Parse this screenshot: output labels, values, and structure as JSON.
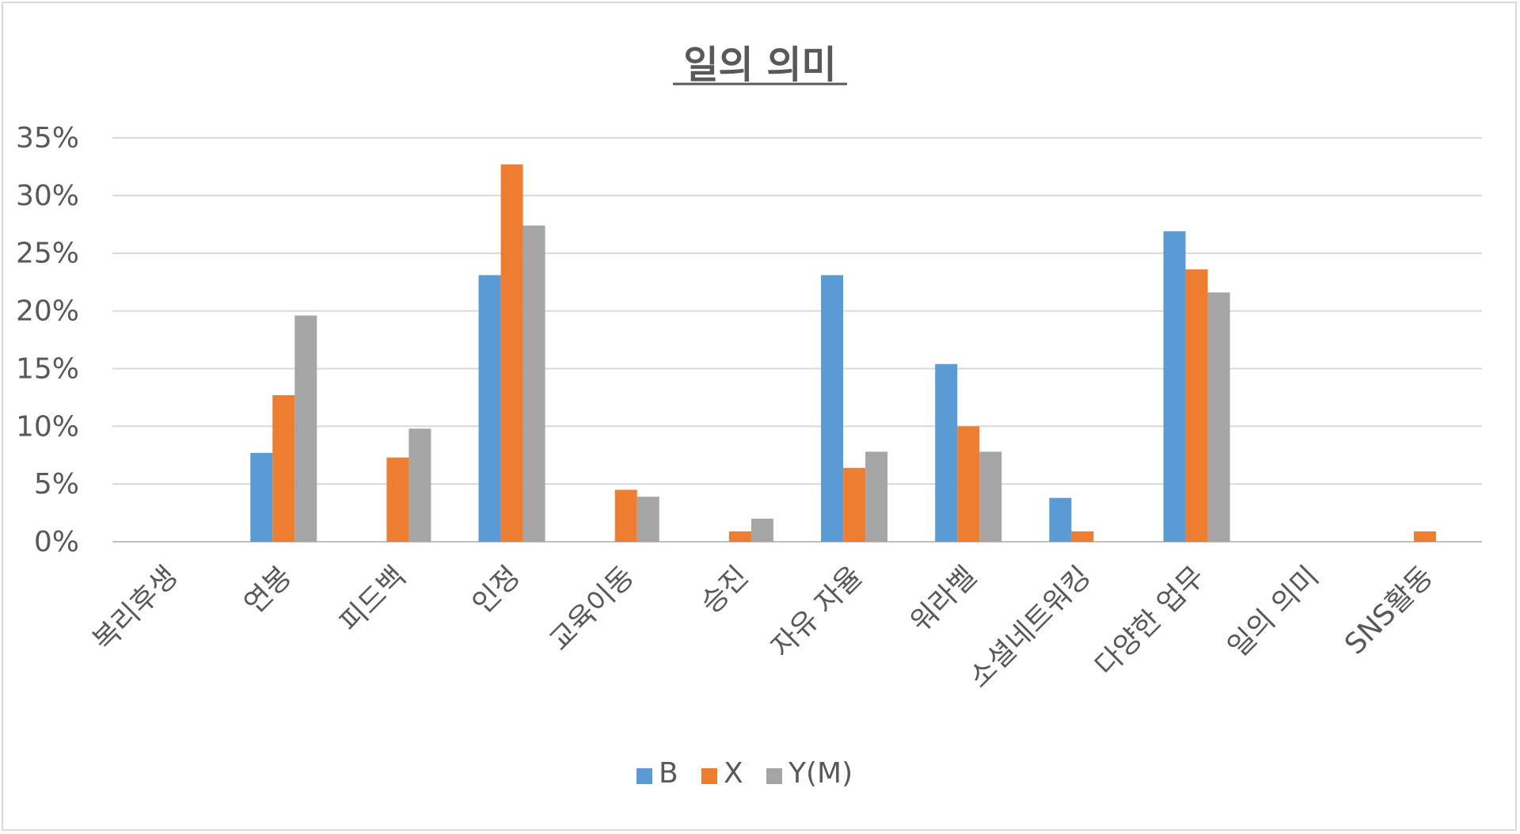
{
  "chart_data": {
    "type": "bar",
    "title": "일의 의미",
    "xlabel": "",
    "ylabel": "",
    "ylim": [
      0,
      0.35
    ],
    "yticks": [
      0,
      0.05,
      0.1,
      0.15,
      0.2,
      0.25,
      0.3,
      0.35
    ],
    "ytick_labels": [
      "0%",
      "5%",
      "10%",
      "15%",
      "20%",
      "25%",
      "30%",
      "35%"
    ],
    "grid": true,
    "legend_position": "bottom",
    "categories": [
      "복리후생",
      "연봉",
      "피드백",
      "인정",
      "교육이동",
      "승진",
      "자유 자율",
      "워라벨",
      "소셜네트워킹",
      "다양한 업무",
      "일의 의미",
      "SNS활동"
    ],
    "series": [
      {
        "name": "B",
        "color": "#5b9bd5",
        "values": [
          0,
          0.077,
          0,
          0.231,
          0,
          0,
          0.231,
          0.154,
          0.038,
          0.269,
          0,
          0
        ]
      },
      {
        "name": "X",
        "color": "#ed7d31",
        "values": [
          0,
          0.127,
          0.073,
          0.327,
          0.045,
          0.009,
          0.064,
          0.1,
          0.009,
          0.236,
          0,
          0.009
        ]
      },
      {
        "name": "Y(M)",
        "color": "#a5a5a5",
        "values": [
          0,
          0.196,
          0.098,
          0.274,
          0.039,
          0.02,
          0.078,
          0.078,
          0,
          0.216,
          0,
          0
        ]
      }
    ]
  }
}
